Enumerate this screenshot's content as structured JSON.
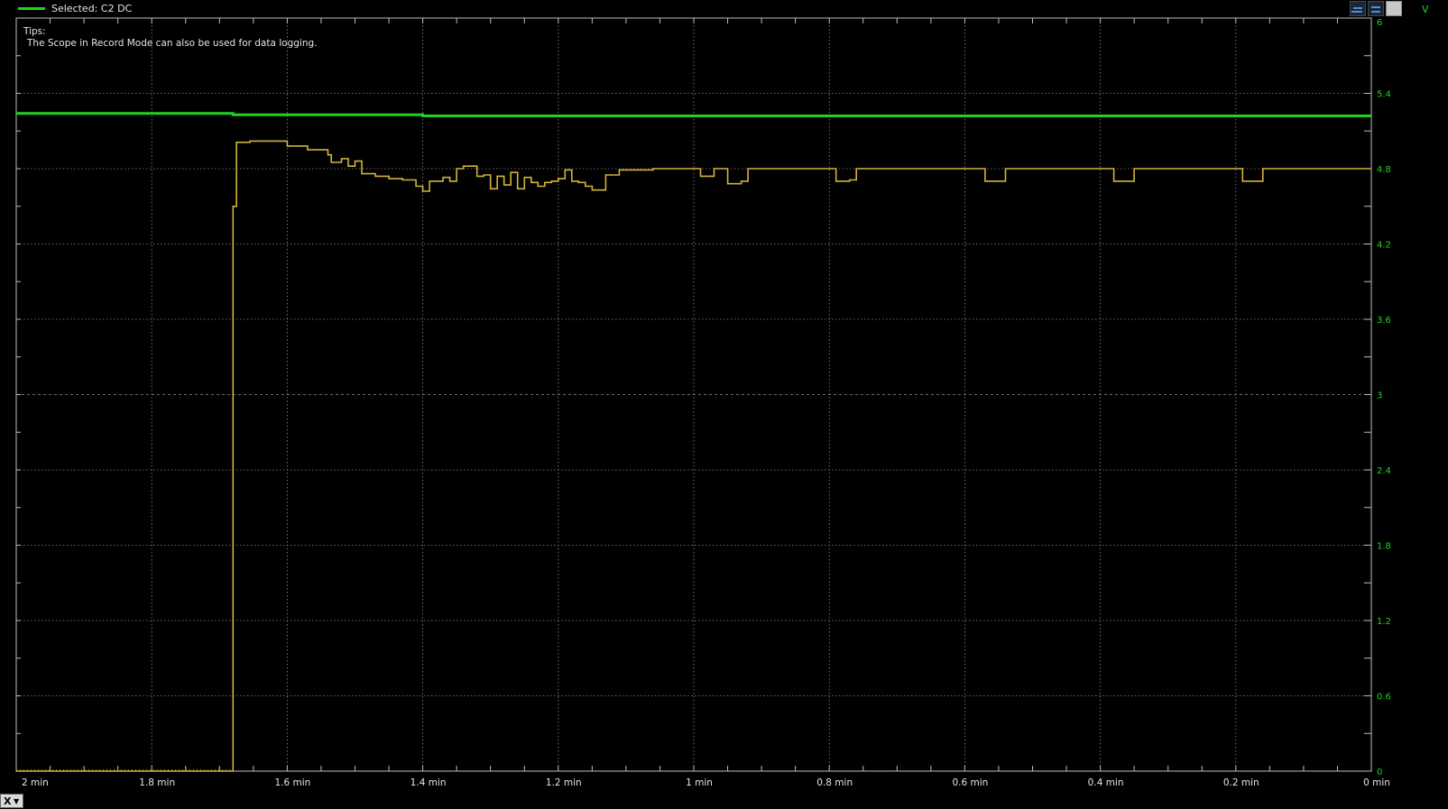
{
  "header": {
    "selected_label": "Selected: C2 DC",
    "unit": "V",
    "channel_color": "#1fd31f"
  },
  "tips": {
    "title": "Tips:",
    "text": "The Scope in Record Mode can also be used for data logging."
  },
  "toolbar": {
    "icons": [
      "zoom-left-icon",
      "zoom-fit-icon",
      "camera-icon"
    ]
  },
  "x_button_label": "X",
  "chart_data": {
    "type": "line",
    "x_axis": {
      "ticks": [
        2.0,
        1.8,
        1.6,
        1.4,
        1.2,
        1.0,
        0.8,
        0.6,
        0.4,
        0.2,
        0.0
      ],
      "tick_labels": [
        "2 min",
        "1.8 min",
        "1.6 min",
        "1.4 min",
        "1.2 min",
        "1 min",
        "0.8 min",
        "0.6 min",
        "0.4 min",
        "0.2 min",
        "0 min"
      ],
      "xlim": [
        2.0,
        0.0
      ],
      "unit": "min"
    },
    "y_axis": {
      "ticks": [
        0,
        0.6,
        1.2,
        1.8,
        2.4,
        3,
        3.6,
        4.2,
        4.8,
        5.4,
        6
      ],
      "ylim": [
        0,
        6
      ],
      "unit": "V",
      "color": "#1fd31f"
    },
    "grid": true,
    "series": [
      {
        "color": "#1fd31f",
        "x": [
          2.0,
          1.7,
          1.68,
          1.4,
          1.0,
          0.6,
          0.2,
          0.0
        ],
        "y": [
          5.24,
          5.24,
          5.23,
          5.22,
          5.22,
          5.22,
          5.22,
          5.22
        ]
      },
      {
        "color": "#d4b23a",
        "x": [
          2.0,
          1.68,
          1.68,
          1.675,
          1.655,
          1.6,
          1.6,
          1.57,
          1.57,
          1.54,
          1.535,
          1.52,
          1.51,
          1.5,
          1.49,
          1.47,
          1.45,
          1.43,
          1.41,
          1.4,
          1.39,
          1.37,
          1.36,
          1.35,
          1.34,
          1.32,
          1.31,
          1.3,
          1.29,
          1.28,
          1.27,
          1.26,
          1.25,
          1.24,
          1.23,
          1.22,
          1.21,
          1.2,
          1.19,
          1.18,
          1.17,
          1.16,
          1.15,
          1.13,
          1.11,
          1.08,
          1.06,
          1.0,
          0.99,
          0.97,
          0.95,
          0.95,
          0.93,
          0.92,
          0.9,
          0.9,
          0.79,
          0.79,
          0.77,
          0.76,
          0.74,
          0.57,
          0.57,
          0.55,
          0.54,
          0.38,
          0.38,
          0.36,
          0.35,
          0.19,
          0.19,
          0.17,
          0.16,
          0.0
        ],
        "y": [
          0.0,
          0.0,
          4.5,
          5.01,
          5.02,
          4.98,
          4.98,
          4.96,
          4.95,
          4.91,
          4.85,
          4.88,
          4.82,
          4.86,
          4.76,
          4.74,
          4.72,
          4.71,
          4.66,
          4.62,
          4.7,
          4.73,
          4.7,
          4.8,
          4.82,
          4.74,
          4.75,
          4.64,
          4.74,
          4.67,
          4.77,
          4.64,
          4.73,
          4.69,
          4.66,
          4.69,
          4.7,
          4.72,
          4.79,
          4.7,
          4.69,
          4.66,
          4.63,
          4.75,
          4.79,
          4.79,
          4.8,
          4.8,
          4.74,
          4.8,
          4.8,
          4.68,
          4.7,
          4.8,
          4.8,
          4.8,
          4.8,
          4.7,
          4.71,
          4.8,
          4.8,
          4.8,
          4.7,
          4.7,
          4.8,
          4.8,
          4.7,
          4.7,
          4.8,
          4.8,
          4.7,
          4.7,
          4.8,
          4.8
        ]
      }
    ]
  }
}
